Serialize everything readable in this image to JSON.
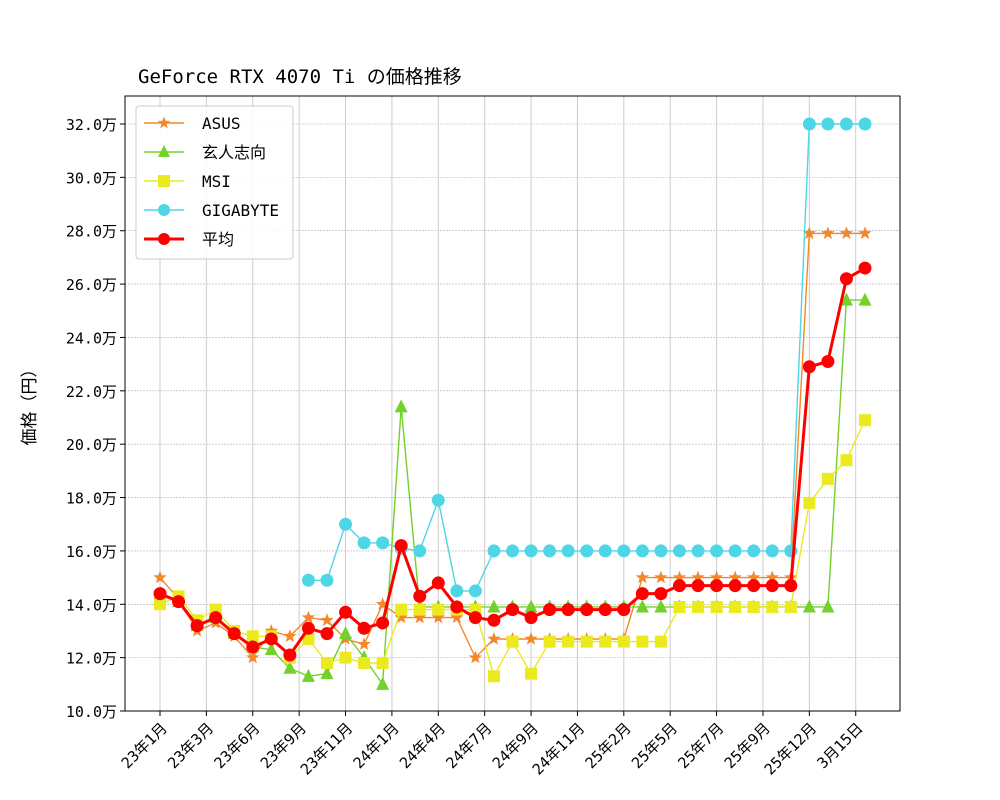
{
  "chart_data": {
    "type": "line",
    "title": "GeForce RTX 4070 Ti の価格推移",
    "xlabel": "",
    "ylabel": "価格（円）",
    "ylim": [
      10.0,
      33.0
    ],
    "yticks": [
      10,
      12,
      14,
      16,
      18,
      20,
      22,
      24,
      26,
      28,
      30,
      32
    ],
    "ytick_suffix": "万",
    "grid": true,
    "legend_position": "top-left",
    "x_count": 39,
    "xticks": [
      {
        "at": 0,
        "label": "23年1月"
      },
      {
        "at": 2.5,
        "label": "23年3月"
      },
      {
        "at": 5,
        "label": "23年6月"
      },
      {
        "at": 7.5,
        "label": "23年9月"
      },
      {
        "at": 10,
        "label": "23年11月"
      },
      {
        "at": 12.5,
        "label": "24年1月"
      },
      {
        "at": 15,
        "label": "24年4月"
      },
      {
        "at": 17.5,
        "label": "24年7月"
      },
      {
        "at": 20,
        "label": "24年9月"
      },
      {
        "at": 22.5,
        "label": "24年11月"
      },
      {
        "at": 25,
        "label": "25年2月"
      },
      {
        "at": 27.5,
        "label": "25年5月"
      },
      {
        "at": 30,
        "label": "25年7月"
      },
      {
        "at": 32.5,
        "label": "25年9月"
      },
      {
        "at": 35,
        "label": "25年12月"
      },
      {
        "at": 37.5,
        "label": "3月15日"
      }
    ],
    "series": [
      {
        "name": "ASUS",
        "color": "#f5872a",
        "marker": "star",
        "values": [
          15.0,
          14.2,
          13.0,
          13.3,
          12.8,
          12.0,
          13.0,
          12.8,
          13.5,
          13.4,
          12.7,
          12.5,
          14.0,
          13.5,
          13.5,
          13.5,
          13.5,
          12.0,
          12.7,
          12.7,
          12.7,
          12.7,
          12.7,
          12.7,
          12.7,
          12.7,
          15.0,
          15.0,
          15.0,
          15.0,
          15.0,
          15.0,
          15.0,
          15.0,
          15.0,
          27.9,
          27.9,
          27.9,
          27.9
        ]
      },
      {
        "name": "玄人志向",
        "color": "#72d12a",
        "marker": "triangle",
        "values": [
          14.4,
          14.1,
          13.2,
          13.5,
          12.9,
          12.4,
          12.3,
          11.6,
          11.3,
          11.4,
          12.9,
          12.0,
          11.0,
          21.4,
          13.9,
          13.9,
          13.9,
          13.9,
          13.9,
          13.9,
          13.9,
          13.9,
          13.9,
          13.9,
          13.9,
          13.9,
          13.9,
          13.9,
          13.9,
          13.9,
          13.9,
          13.9,
          13.9,
          13.9,
          13.9,
          13.9,
          13.9,
          25.4,
          25.4
        ]
      },
      {
        "name": "MSI",
        "color": "#eaea1e",
        "marker": "square",
        "values": [
          14.0,
          14.3,
          13.4,
          13.8,
          13.0,
          12.8,
          12.8,
          12.0,
          12.7,
          11.8,
          12.0,
          11.8,
          11.8,
          13.8,
          13.8,
          13.8,
          13.8,
          13.8,
          11.3,
          12.6,
          11.4,
          12.6,
          12.6,
          12.6,
          12.6,
          12.6,
          12.6,
          12.6,
          13.9,
          13.9,
          13.9,
          13.9,
          13.9,
          13.9,
          13.9,
          17.8,
          18.7,
          19.4,
          20.9
        ]
      },
      {
        "name": "GIGABYTE",
        "color": "#4fd6e6",
        "marker": "circle",
        "values": [
          null,
          null,
          null,
          null,
          null,
          null,
          null,
          null,
          14.9,
          14.9,
          17.0,
          16.3,
          16.3,
          16.1,
          16.0,
          17.9,
          14.5,
          14.5,
          16.0,
          16.0,
          16.0,
          16.0,
          16.0,
          16.0,
          16.0,
          16.0,
          16.0,
          16.0,
          16.0,
          16.0,
          16.0,
          16.0,
          16.0,
          16.0,
          16.0,
          32.0,
          32.0,
          32.0,
          32.0
        ]
      },
      {
        "name": "平均",
        "color": "#ff0000",
        "marker": "circle",
        "values": [
          14.4,
          14.1,
          13.2,
          13.5,
          12.9,
          12.4,
          12.7,
          12.1,
          13.1,
          12.9,
          13.7,
          13.1,
          13.3,
          16.2,
          14.3,
          14.8,
          13.9,
          13.5,
          13.4,
          13.8,
          13.5,
          13.8,
          13.8,
          13.8,
          13.8,
          13.8,
          14.4,
          14.4,
          14.7,
          14.7,
          14.7,
          14.7,
          14.7,
          14.7,
          14.7,
          22.9,
          23.1,
          26.2,
          26.6
        ]
      }
    ]
  }
}
